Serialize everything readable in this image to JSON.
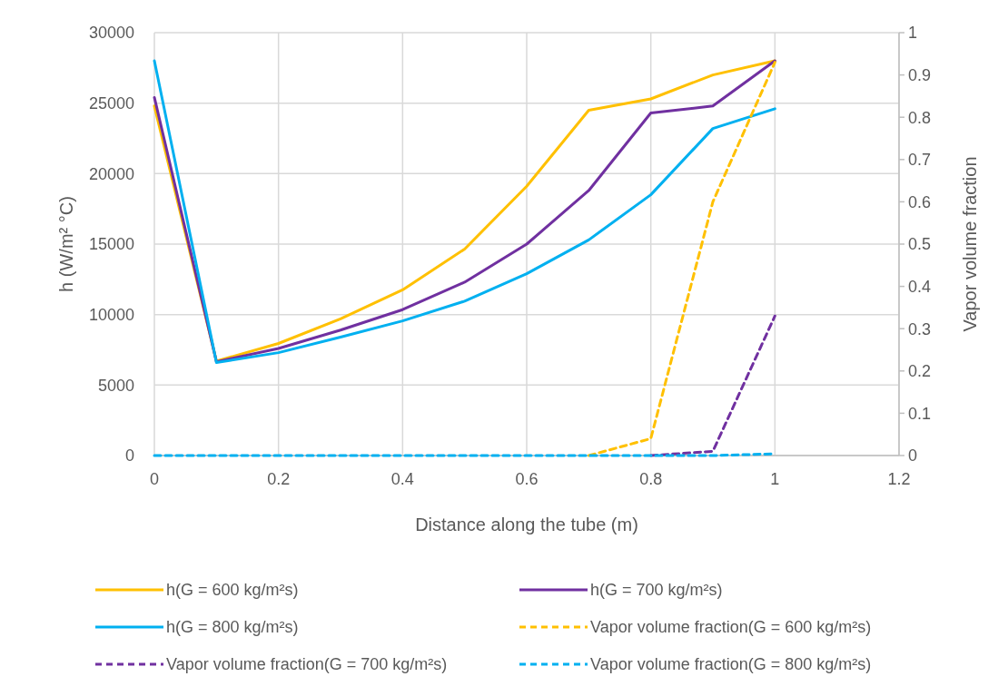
{
  "chart_data": {
    "type": "line",
    "xlabel": "Distance along the tube (m)",
    "ylabel": "h (W/m² °C)",
    "y2label": "Vapor volume fraction",
    "x": [
      0,
      0.1,
      0.2,
      0.3,
      0.4,
      0.5,
      0.6,
      0.7,
      0.8,
      0.9,
      1
    ],
    "xlim": [
      0,
      1.2
    ],
    "xticks": [
      0,
      0.2,
      0.4,
      0.6,
      0.8,
      1,
      1.2
    ],
    "ylim": [
      0,
      30000
    ],
    "yticks": [
      0,
      5000,
      10000,
      15000,
      20000,
      25000,
      30000
    ],
    "y2lim": [
      0,
      1
    ],
    "y2ticks": [
      0,
      0.1,
      0.2,
      0.3,
      0.4,
      0.5,
      0.6,
      0.7,
      0.8,
      0.9,
      1
    ],
    "grid": true,
    "legend": "bottom",
    "marker": "none",
    "series": [
      {
        "name": "h(G = 600 kg/m²s)",
        "color": "#ffc000",
        "line_style": "solid",
        "values": [
          24800,
          6700,
          7950,
          9700,
          11750,
          14650,
          19100,
          24500,
          25300,
          27000,
          28000
        ]
      },
      {
        "name": "h(G = 700 kg/m²s)",
        "color": "#7030a0",
        "line_style": "solid",
        "values": [
          25400,
          6650,
          7600,
          8900,
          10350,
          12300,
          15000,
          18800,
          24300,
          24800,
          28000
        ]
      },
      {
        "name": "h(G = 800 kg/m²s)",
        "color": "#00b0f0",
        "line_style": "solid",
        "values": [
          28000,
          6600,
          7300,
          8400,
          9550,
          10950,
          12900,
          15300,
          18500,
          23200,
          24600
        ]
      },
      {
        "name": "Vapor volume fraction(G = 600 kg/m²s)",
        "color": "#ffc000",
        "line_style": "dashed",
        "axis": "y2",
        "values": [
          null,
          null,
          null,
          null,
          null,
          null,
          null,
          0,
          0.04,
          0.6,
          0.93
        ]
      },
      {
        "name": "Vapor volume fraction(G = 700 kg/m²s)",
        "color": "#7030a0",
        "line_style": "dashed",
        "axis": "y2",
        "values": [
          null,
          null,
          null,
          null,
          null,
          null,
          null,
          null,
          0,
          0.01,
          0.33
        ]
      },
      {
        "name": "Vapor volume fraction(G = 800 kg/m²s)",
        "color": "#00b0f0",
        "line_style": "dashed",
        "axis": "y2",
        "values": [
          0,
          0,
          0,
          0,
          0,
          0,
          0,
          0,
          0,
          0,
          0.004
        ]
      }
    ]
  }
}
